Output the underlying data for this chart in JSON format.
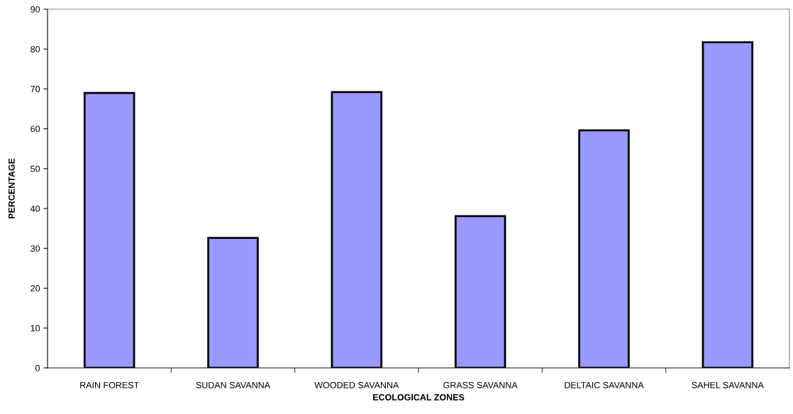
{
  "chart_data": {
    "type": "bar",
    "xlabel": "ECOLOGICAL ZONES",
    "ylabel": "PERCENTAGE",
    "categories": [
      "RAIN FOREST",
      "SUDAN SAVANNA",
      "WOODED SAVANNA",
      "GRASS SAVANNA",
      "DELTAIC SAVANNA",
      "SAHEL SAVANNA"
    ],
    "values": [
      69.0,
      32.6,
      69.2,
      38.1,
      59.6,
      81.7
    ],
    "color": "#9999ff",
    "ylim": [
      0,
      90
    ],
    "yticks": [
      0,
      10,
      20,
      30,
      40,
      50,
      60,
      70,
      80,
      90
    ],
    "grid": false,
    "legend": false
  }
}
